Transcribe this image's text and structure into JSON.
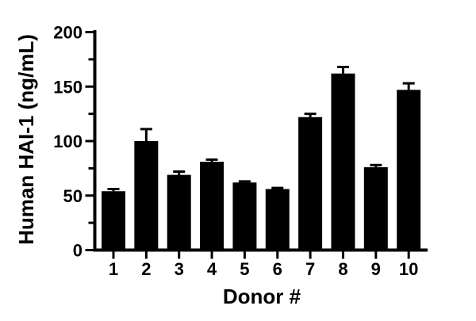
{
  "figure": {
    "background": "#ffffff",
    "foreground": "#000000"
  },
  "chart_data": {
    "type": "bar",
    "title": "",
    "xlabel": "Donor #",
    "ylabel": "Human HAI-1 (ng/mL)",
    "categories": [
      "1",
      "2",
      "3",
      "4",
      "5",
      "6",
      "7",
      "8",
      "9",
      "10"
    ],
    "values": [
      54,
      100,
      69,
      81,
      62,
      56,
      122,
      162,
      76,
      147
    ],
    "errors_upper": [
      2,
      11,
      3,
      2,
      1,
      1,
      3,
      6,
      2,
      6
    ],
    "error_bar_style": "upper caps only",
    "ylim": [
      0,
      200
    ],
    "yticks": [
      0,
      50,
      100,
      150,
      200
    ],
    "yticks_minor": [
      25,
      75,
      125,
      175
    ],
    "bar_color": "#000000",
    "axis_color": "#000000",
    "grid": false,
    "legend": false
  }
}
